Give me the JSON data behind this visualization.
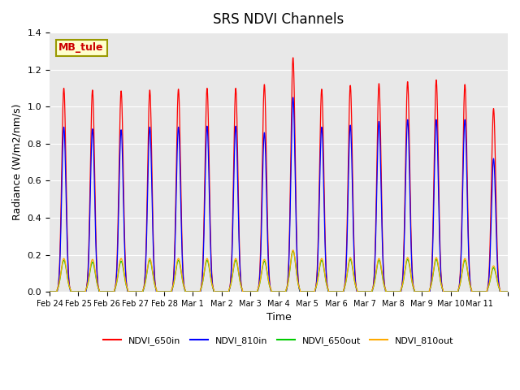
{
  "title": "SRS NDVI Channels",
  "xlabel": "Time",
  "ylabel": "Radiance (W/m2/nm/s)",
  "annotation": "MB_tule",
  "ylim": [
    0,
    1.4
  ],
  "yticks": [
    0.0,
    0.2,
    0.4,
    0.6,
    0.8,
    1.0,
    1.2,
    1.4
  ],
  "line_colors": {
    "NDVI_650in": "#ff0000",
    "NDVI_810in": "#0000ff",
    "NDVI_650out": "#00cc00",
    "NDVI_810out": "#ffaa00"
  },
  "legend_labels": [
    "NDVI_650in",
    "NDVI_810in",
    "NDVI_650out",
    "NDVI_810out"
  ],
  "n_days": 16,
  "bg_color": "#e8e8e8",
  "fig_bg_color": "#ffffff",
  "annotation_bg": "#ffffcc",
  "annotation_border": "#999900",
  "annotation_text_color": "#cc0000",
  "peaks_650in": [
    1.1,
    1.09,
    1.085,
    1.09,
    1.095,
    1.1,
    1.1,
    1.12,
    1.265,
    1.095,
    1.115,
    1.125,
    1.135,
    1.145,
    1.12,
    0.99
  ],
  "peaks_810in": [
    0.89,
    0.88,
    0.875,
    0.89,
    0.89,
    0.895,
    0.895,
    0.86,
    1.05,
    0.89,
    0.9,
    0.92,
    0.93,
    0.93,
    0.93,
    0.72
  ],
  "peaks_650out": [
    0.17,
    0.16,
    0.165,
    0.17,
    0.17,
    0.17,
    0.17,
    0.165,
    0.22,
    0.17,
    0.175,
    0.17,
    0.175,
    0.175,
    0.17,
    0.13
  ],
  "peaks_810out": [
    0.18,
    0.175,
    0.18,
    0.18,
    0.18,
    0.18,
    0.18,
    0.175,
    0.225,
    0.18,
    0.185,
    0.18,
    0.185,
    0.185,
    0.18,
    0.14
  ],
  "xtick_labels": [
    "Feb 24",
    "Feb 25",
    "Feb 26",
    "Feb 27",
    "Feb 28",
    "Mar 1",
    "Mar 2",
    "Mar 3",
    "Mar 4",
    "Mar 5",
    "Mar 6",
    "Mar 7",
    "Mar 8",
    "Mar 9",
    "Mar 10",
    "Mar 11"
  ]
}
